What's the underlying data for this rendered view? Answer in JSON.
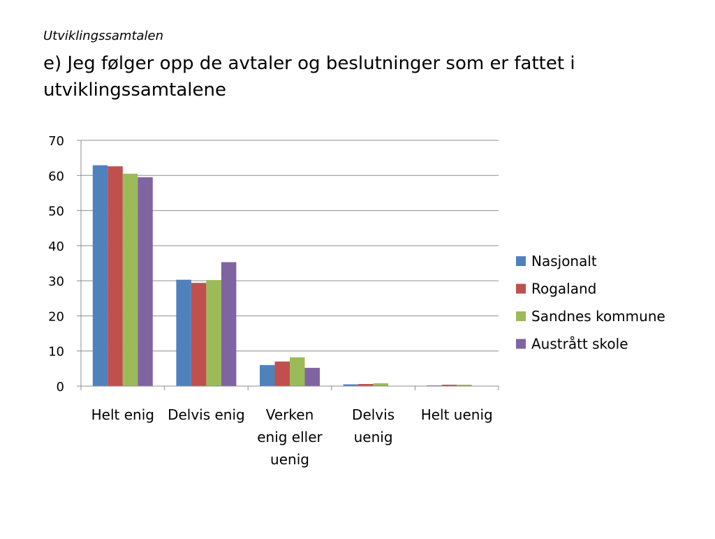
{
  "slide": {
    "subtitle": "Utviklingssamtalen",
    "title": "e) Jeg følger opp de avtaler og beslutninger som er fattet i utviklingssamtalene"
  },
  "chart_data": {
    "type": "bar",
    "title": "",
    "xlabel": "",
    "ylabel": "",
    "ylim": [
      0,
      70
    ],
    "yticks": [
      0,
      10,
      20,
      30,
      40,
      50,
      60,
      70
    ],
    "grid": true,
    "legend_position": "right",
    "categories": [
      [
        "Helt enig"
      ],
      [
        "Delvis enig"
      ],
      [
        "Verken",
        "enig eller",
        "uenig"
      ],
      [
        "Delvis",
        "uenig"
      ],
      [
        "Helt uenig"
      ]
    ],
    "series": [
      {
        "name": "Nasjonalt",
        "color": "#4F81BD",
        "values": [
          62.9,
          30.3,
          6.0,
          0.5,
          0.2
        ]
      },
      {
        "name": "Rogaland",
        "color": "#C0504D",
        "values": [
          62.6,
          29.4,
          7.0,
          0.6,
          0.4
        ]
      },
      {
        "name": "Sandnes kommune",
        "color": "#9BBB59",
        "values": [
          60.5,
          30.2,
          8.2,
          0.8,
          0.4
        ]
      },
      {
        "name": "Austrått skole",
        "color": "#8064A2",
        "values": [
          59.5,
          35.3,
          5.2,
          0.0,
          0.0
        ]
      }
    ]
  }
}
